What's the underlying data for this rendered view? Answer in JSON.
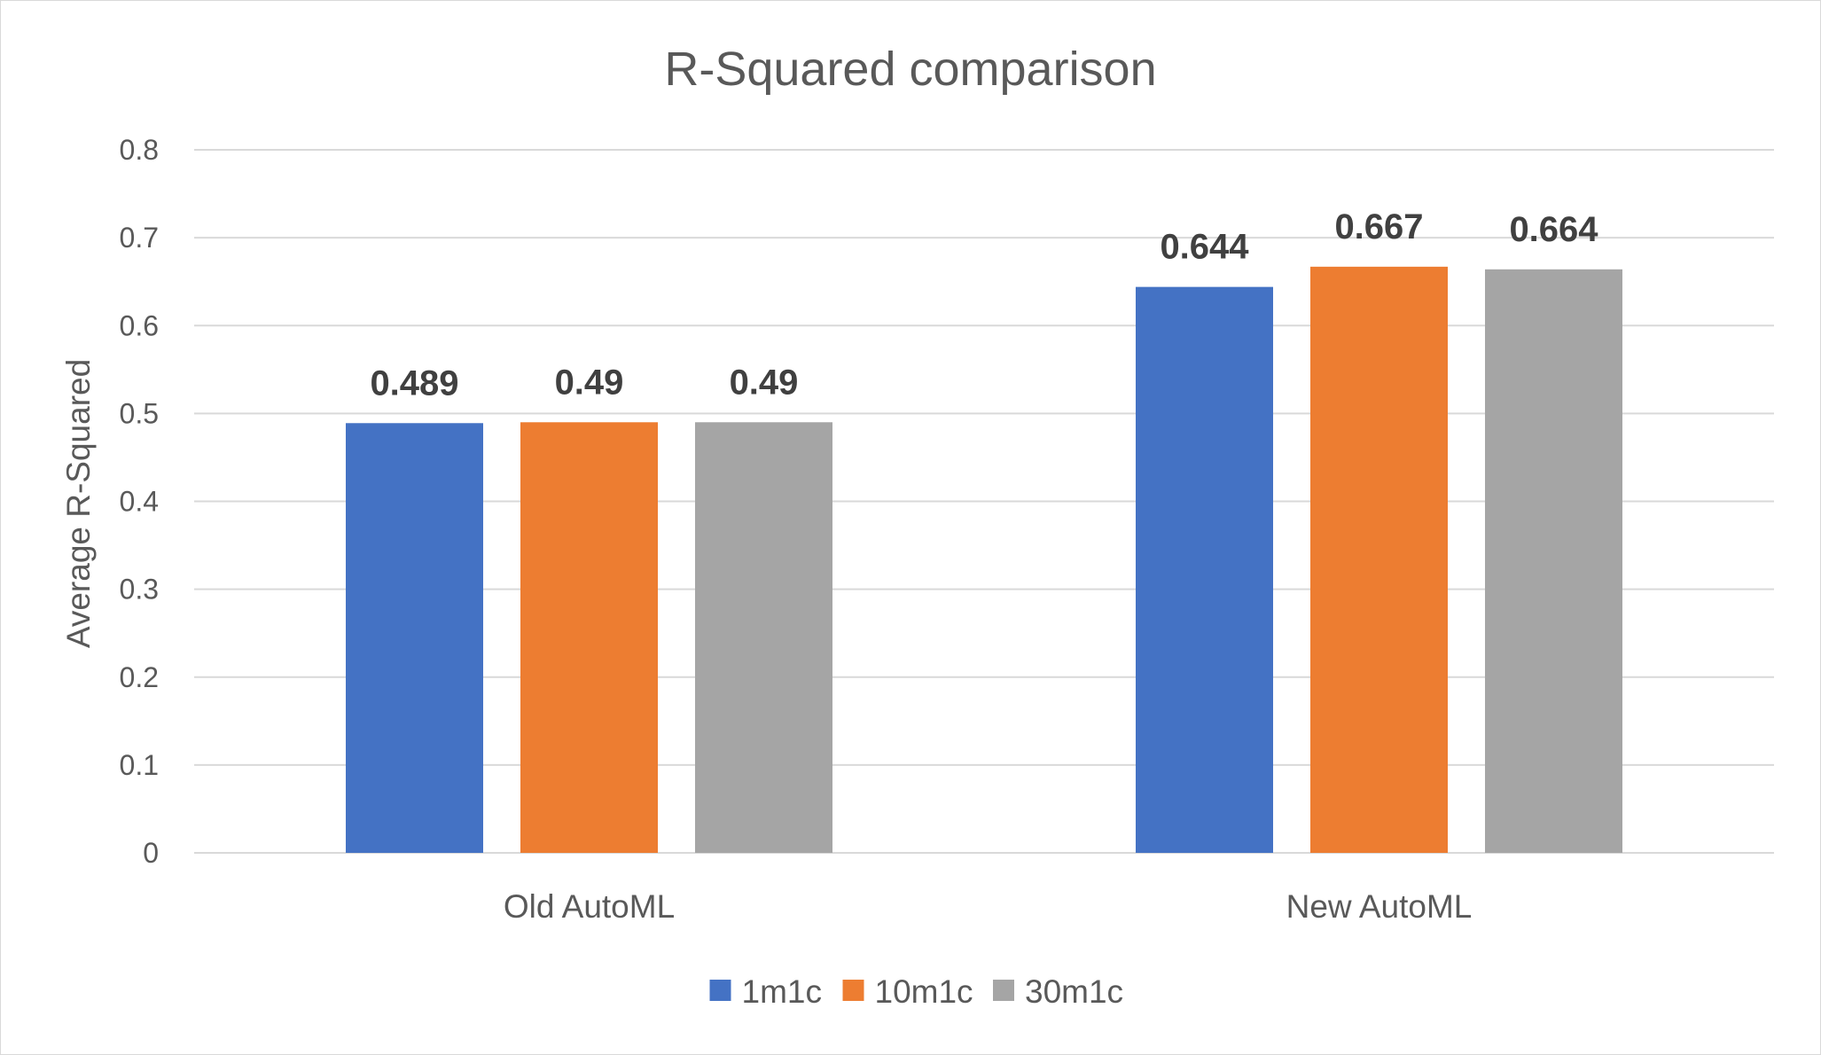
{
  "chart_data": {
    "type": "bar",
    "title": "R-Squared comparison",
    "xlabel": "",
    "ylabel": "Average R-Squared",
    "ylim": [
      0,
      0.8
    ],
    "yticks": [
      "0",
      "0.1",
      "0.2",
      "0.3",
      "0.4",
      "0.5",
      "0.6",
      "0.7",
      "0.8"
    ],
    "ytick_values": [
      0,
      0.1,
      0.2,
      0.3,
      0.4,
      0.5,
      0.6,
      0.7,
      0.8
    ],
    "grid": true,
    "legend_position": "bottom",
    "categories": [
      "Old AutoML",
      "New AutoML"
    ],
    "series": [
      {
        "name": "1m1c",
        "color": "#4472C4",
        "values": [
          0.489,
          0.644
        ],
        "labels": [
          "0.489",
          "0.644"
        ]
      },
      {
        "name": "10m1c",
        "color": "#ED7D31",
        "values": [
          0.49,
          0.667
        ],
        "labels": [
          "0.49",
          "0.667"
        ]
      },
      {
        "name": "30m1c",
        "color": "#A5A5A5",
        "values": [
          0.49,
          0.664
        ],
        "labels": [
          "0.49",
          "0.664"
        ]
      }
    ]
  }
}
